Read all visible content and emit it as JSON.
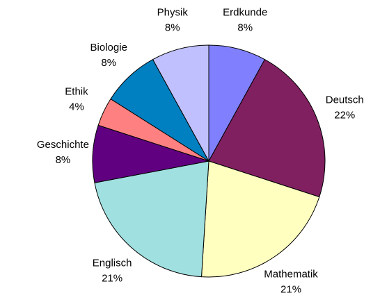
{
  "chart_data": {
    "type": "pie",
    "categories": [
      "Erdkunde",
      "Deutsch",
      "Mathematik",
      "Englisch",
      "Geschichte",
      "Ethik",
      "Biologie",
      "Physik"
    ],
    "values": [
      8,
      22,
      21,
      21,
      8,
      4,
      8,
      8
    ],
    "value_labels": [
      "8%",
      "22%",
      "21%",
      "21%",
      "8%",
      "4%",
      "8%",
      "8%"
    ],
    "colors": [
      "#8080ff",
      "#802060",
      "#ffffc0",
      "#a0e0e0",
      "#600080",
      "#ff8080",
      "#0080c0",
      "#c0c0ff"
    ]
  }
}
